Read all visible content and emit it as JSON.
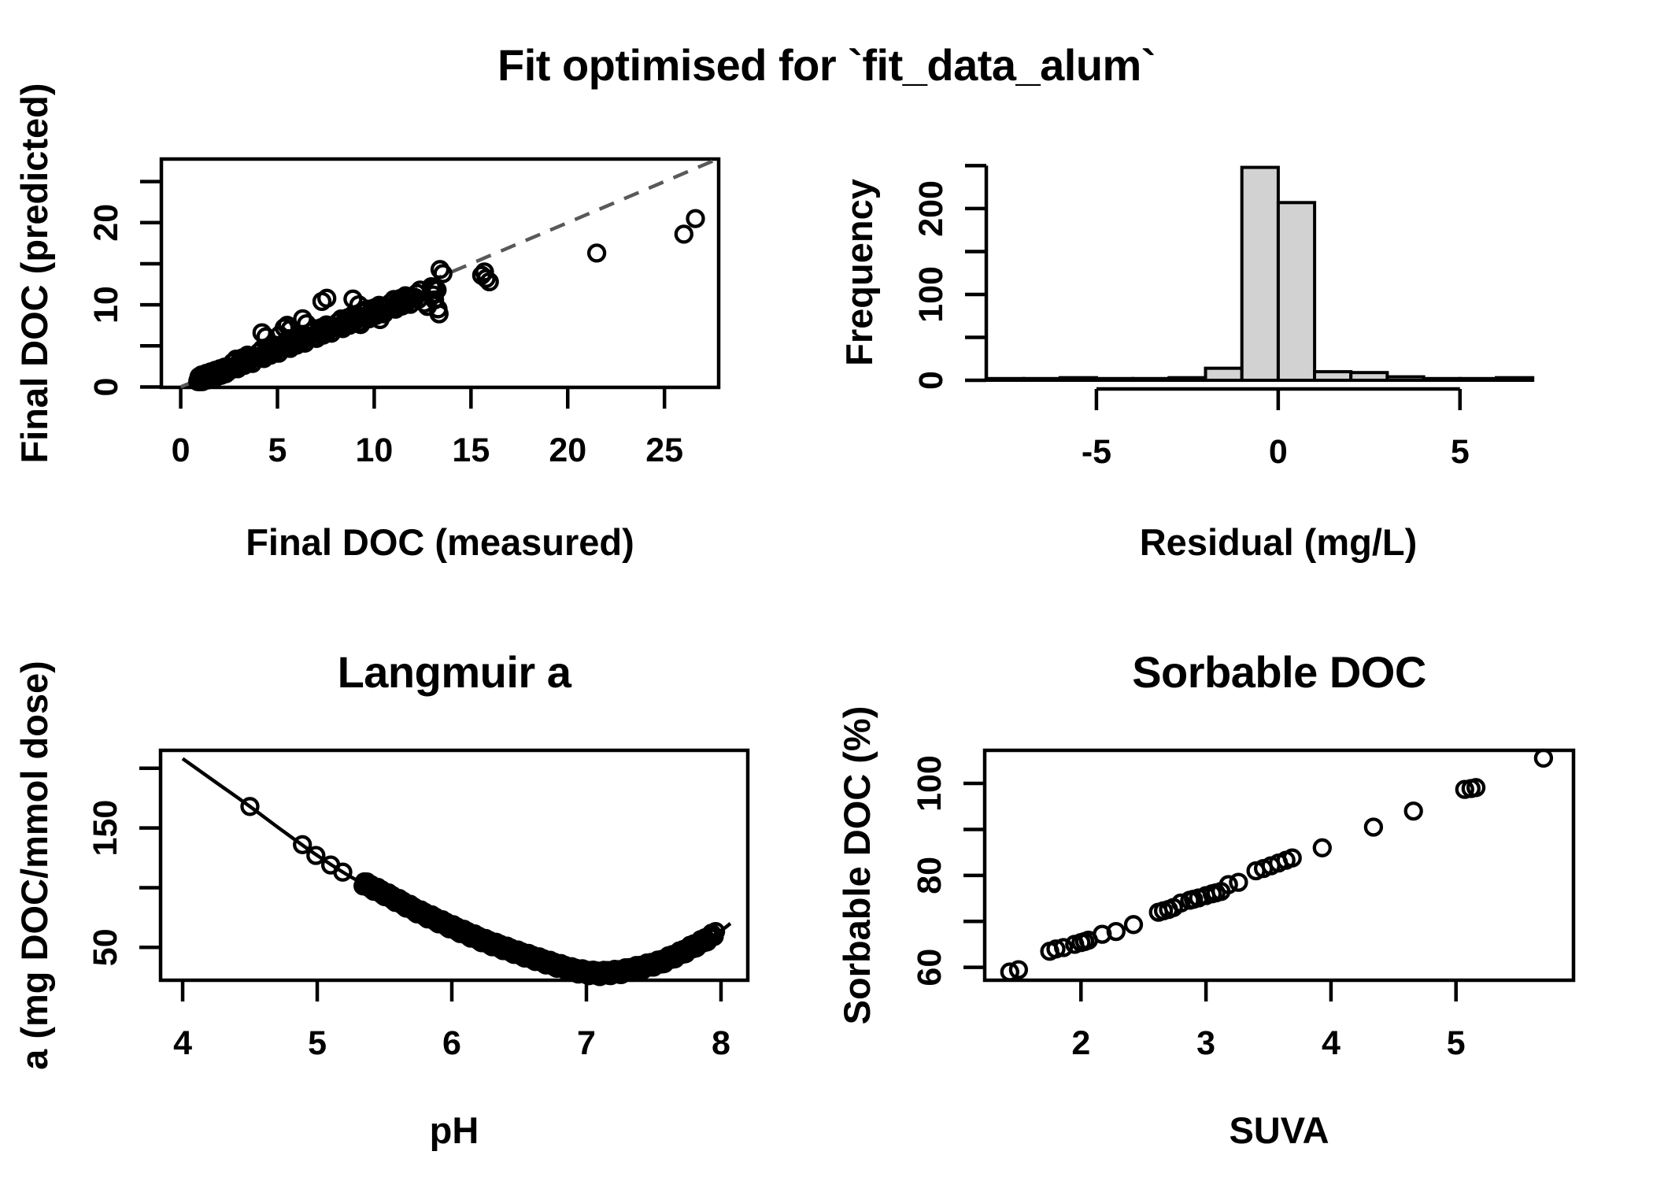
{
  "figure": {
    "title": "Fit optimised for `fit_data_alum`"
  },
  "colors": {
    "foreground": "#000000",
    "background": "#ffffff",
    "histogram_fill": "#d2d2d2",
    "identity_line": "#595959"
  },
  "chart_data": [
    {
      "id": "fit",
      "type": "scatter",
      "xlabel": "Final DOC (measured)",
      "ylabel": "Final DOC (predicted)",
      "xlim": [
        -1.0,
        27.8
      ],
      "ylim": [
        -0.05,
        27.74
      ],
      "xticks": {
        "values": [
          0,
          5,
          10,
          15,
          20,
          25
        ],
        "labels": [
          "0",
          "5",
          "10",
          "15",
          "20",
          "25"
        ]
      },
      "yticks": {
        "values": [
          0,
          5,
          10,
          15,
          20,
          25
        ],
        "labels": [
          "0",
          "",
          "10",
          "",
          "20",
          ""
        ]
      },
      "identity_line": {
        "from": [
          0,
          0
        ],
        "to": [
          27.7,
          27.7
        ],
        "dashed": true
      },
      "points": [
        [
          4.2,
          6.6
        ],
        [
          4.4,
          6.1
        ],
        [
          5.1,
          6.3
        ],
        [
          5.35,
          7.2
        ],
        [
          5.5,
          7.5
        ],
        [
          5.65,
          7.0
        ],
        [
          6.3,
          8.3
        ],
        [
          6.5,
          7.7
        ],
        [
          7.3,
          10.4
        ],
        [
          7.55,
          10.8
        ],
        [
          8.9,
          10.7
        ],
        [
          9.2,
          10.0
        ],
        [
          9.3,
          7.6
        ],
        [
          10.3,
          8.2
        ],
        [
          12.6,
          10.2
        ],
        [
          12.75,
          9.8
        ],
        [
          12.95,
          12.2
        ],
        [
          13.05,
          11.2
        ],
        [
          13.1,
          12.0
        ],
        [
          13.12,
          10.6
        ],
        [
          13.25,
          11.8
        ],
        [
          13.3,
          9.5
        ],
        [
          13.35,
          8.9
        ],
        [
          13.4,
          14.3
        ],
        [
          13.55,
          13.8
        ],
        [
          15.55,
          13.6
        ],
        [
          15.7,
          14.0
        ],
        [
          15.78,
          13.2
        ],
        [
          15.95,
          12.8
        ],
        [
          21.5,
          16.3
        ],
        [
          26.0,
          18.6
        ],
        [
          26.6,
          20.5
        ]
      ],
      "point_clusters": [
        {
          "x_start": 0.88,
          "x_end": 2.56,
          "step": 0.024,
          "slope": 0.88,
          "quad": 0,
          "intercept": 0,
          "jitter": [
            -0.12,
            0.08,
            -0.04,
            0.16,
            0.02,
            -0.18,
            0.12,
            -0.08,
            0.05,
            0.2,
            -0.2,
            0
          ]
        },
        {
          "x_start": 0.95,
          "x_end": 2.45,
          "step": 0.03,
          "slope": 0.8,
          "quad": 0,
          "intercept": 0.15,
          "jitter": [
            0.35,
            -0.3,
            0.15,
            -0.15,
            0.45,
            0,
            -0.4,
            0.25
          ]
        },
        {
          "x_start": 2.6,
          "x_end": 12.4,
          "step": 0.085,
          "slope": 0.952,
          "quad": -0.0045,
          "intercept": 0,
          "jitter": [
            0,
            0.45,
            -0.35,
            0.7,
            -0.55,
            0.2,
            -0.15,
            0.55,
            -0.45,
            0.05,
            0.65,
            -0.25,
            0.35,
            -0.6,
            0.15,
            -0.05
          ]
        }
      ]
    },
    {
      "id": "hist",
      "type": "histogram",
      "xlabel": "Residual (mg/L)",
      "ylabel": "Frequency",
      "xlim": [
        -8.03,
        7.3
      ],
      "ylim": [
        0,
        250
      ],
      "bin_start": -8,
      "bin_width": 1,
      "counts": [
        2,
        2,
        3,
        2,
        2,
        3,
        14,
        248,
        207,
        10,
        9,
        4,
        2,
        2,
        3
      ],
      "xticks": {
        "values": [
          -5,
          0,
          5
        ],
        "labels": [
          "-5",
          "0",
          "5"
        ]
      },
      "yticks": {
        "values": [
          0,
          50,
          100,
          150,
          200,
          250
        ],
        "labels": [
          "0",
          "",
          "100",
          "",
          "200",
          ""
        ]
      }
    },
    {
      "id": "langmuir",
      "type": "curve_scatter",
      "title": "Langmuir a",
      "xlabel": "pH",
      "ylabel": "a (mg DOC/mmol dose)",
      "xlim": [
        3.836,
        8.199
      ],
      "ylim": [
        22.5,
        215
      ],
      "xticks": {
        "values": [
          4,
          5,
          6,
          7,
          8
        ],
        "labels": [
          "4",
          "5",
          "6",
          "7",
          "8"
        ]
      },
      "yticks": {
        "values": [
          50,
          100,
          150,
          200
        ],
        "labels": [
          "50",
          "",
          "150",
          ""
        ]
      },
      "curve": [
        [
          4.0,
          208
        ],
        [
          4.25,
          188
        ],
        [
          4.5,
          168
        ],
        [
          4.75,
          147
        ],
        [
          5.0,
          127
        ],
        [
          5.25,
          109
        ],
        [
          5.5,
          95
        ],
        [
          5.75,
          80
        ],
        [
          6.0,
          67
        ],
        [
          6.25,
          55
        ],
        [
          6.5,
          45
        ],
        [
          6.75,
          36
        ],
        [
          6.9,
          31
        ],
        [
          7.0,
          29
        ],
        [
          7.1,
          28
        ],
        [
          7.25,
          29.5
        ],
        [
          7.4,
          33
        ],
        [
          7.55,
          37.5
        ],
        [
          7.7,
          45
        ],
        [
          7.85,
          54
        ],
        [
          8.0,
          64
        ],
        [
          8.07,
          70
        ]
      ],
      "points": [
        [
          4.5,
          168
        ],
        [
          4.89,
          136
        ],
        [
          4.99,
          127
        ],
        [
          5.1,
          119
        ],
        [
          5.19,
          113
        ]
      ],
      "point_clusters": [
        {
          "x_start": 5.34,
          "x_end": 7.96,
          "step": 0.01,
          "follow_curve": true,
          "jitter": [
            -2.5,
            1.5,
            -0.5,
            2.5,
            0.5,
            -1.5,
            2.0,
            -2.2
          ]
        }
      ]
    },
    {
      "id": "sorbable",
      "type": "scatter",
      "title": "Sorbable DOC",
      "xlabel": "SUVA",
      "ylabel": "Sorbable DOC (%)",
      "xlim": [
        1.23,
        5.94
      ],
      "ylim": [
        57.2,
        107.2
      ],
      "xticks": {
        "values": [
          2,
          3,
          4,
          5
        ],
        "labels": [
          "2",
          "3",
          "4",
          "5"
        ]
      },
      "yticks": {
        "values": [
          60,
          70,
          80,
          90,
          100
        ],
        "labels": [
          "60",
          "",
          "80",
          "",
          "100"
        ]
      },
      "points": [
        [
          1.43,
          59
        ],
        [
          1.5,
          59.5
        ],
        [
          1.75,
          63.5
        ],
        [
          1.8,
          64
        ],
        [
          1.86,
          64.3
        ],
        [
          1.95,
          65
        ],
        [
          2.0,
          65.4
        ],
        [
          2.03,
          65.6
        ],
        [
          2.06,
          65.9
        ],
        [
          2.17,
          67.2
        ],
        [
          2.28,
          67.8
        ],
        [
          2.42,
          69.3
        ],
        [
          2.62,
          72
        ],
        [
          2.66,
          72.3
        ],
        [
          2.7,
          72.6
        ],
        [
          2.74,
          73
        ],
        [
          2.8,
          74
        ],
        [
          2.87,
          74.6
        ],
        [
          2.9,
          74.8
        ],
        [
          2.94,
          75.1
        ],
        [
          3.0,
          75.6
        ],
        [
          3.05,
          76
        ],
        [
          3.08,
          76.2
        ],
        [
          3.12,
          76.5
        ],
        [
          3.18,
          78
        ],
        [
          3.26,
          78.5
        ],
        [
          3.4,
          81
        ],
        [
          3.46,
          81.5
        ],
        [
          3.52,
          82.1
        ],
        [
          3.58,
          82.7
        ],
        [
          3.64,
          83.3
        ],
        [
          3.69,
          83.8
        ],
        [
          3.93,
          86
        ],
        [
          4.34,
          90.5
        ],
        [
          4.66,
          94
        ],
        [
          5.07,
          98.7
        ],
        [
          5.12,
          98.9
        ],
        [
          5.16,
          99.1
        ],
        [
          5.7,
          105.5
        ]
      ]
    }
  ]
}
